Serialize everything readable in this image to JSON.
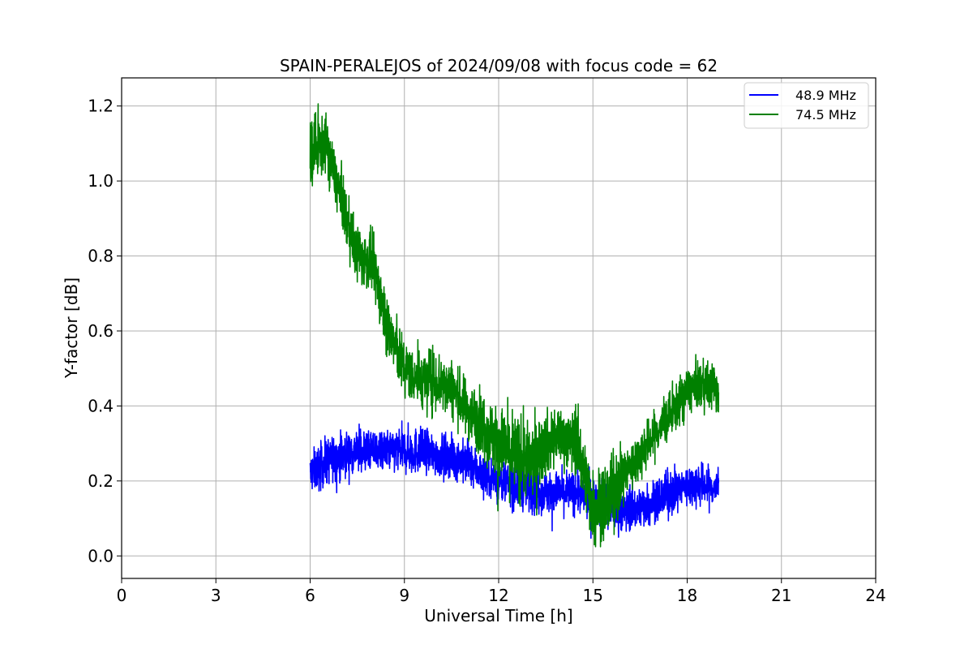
{
  "chart_data": {
    "type": "line",
    "title": "SPAIN-PERALEJOS of 2024/09/08 with focus code = 62",
    "xlabel": "Universal Time [h]",
    "ylabel": "Y-factor [dB]",
    "xlim": [
      0,
      24
    ],
    "ylim": [
      -0.06,
      1.275
    ],
    "xticks": [
      0,
      3,
      6,
      9,
      12,
      15,
      18,
      21,
      24
    ],
    "yticks": [
      0.0,
      0.2,
      0.4,
      0.6,
      0.8,
      1.0,
      1.2
    ],
    "ytick_labels": [
      "0.0",
      "0.2",
      "0.4",
      "0.6",
      "0.8",
      "1.0",
      "1.2"
    ],
    "grid": true,
    "legend_position": "top-right",
    "series": [
      {
        "name": "48.9 MHz",
        "color": "#0000ff",
        "x": [
          6.0,
          6.5,
          7.0,
          7.5,
          8.0,
          8.5,
          9.0,
          9.5,
          10.0,
          10.5,
          11.0,
          11.5,
          12.0,
          12.5,
          13.0,
          13.5,
          14.0,
          14.5,
          15.0,
          15.5,
          16.0,
          16.5,
          17.0,
          17.5,
          18.0,
          18.5,
          19.0
        ],
        "values": [
          0.22,
          0.25,
          0.27,
          0.28,
          0.28,
          0.28,
          0.28,
          0.28,
          0.27,
          0.26,
          0.25,
          0.22,
          0.2,
          0.19,
          0.18,
          0.17,
          0.17,
          0.17,
          0.15,
          0.13,
          0.12,
          0.13,
          0.15,
          0.17,
          0.19,
          0.19,
          0.18
        ],
        "noise": [
          0.045,
          0.05,
          0.05,
          0.045,
          0.045,
          0.045,
          0.05,
          0.05,
          0.045,
          0.045,
          0.045,
          0.045,
          0.045,
          0.05,
          0.05,
          0.045,
          0.045,
          0.045,
          0.05,
          0.05,
          0.045,
          0.045,
          0.045,
          0.045,
          0.045,
          0.045,
          0.04
        ]
      },
      {
        "name": "74.5 MHz",
        "color": "#008000",
        "x": [
          6.0,
          6.5,
          7.0,
          7.5,
          8.0,
          8.5,
          9.0,
          9.5,
          10.0,
          10.5,
          11.0,
          11.5,
          12.0,
          12.5,
          13.0,
          13.5,
          14.0,
          14.5,
          15.0,
          15.5,
          16.0,
          16.5,
          17.0,
          17.5,
          18.0,
          18.5,
          19.0
        ],
        "values": [
          1.08,
          1.1,
          0.95,
          0.8,
          0.78,
          0.6,
          0.5,
          0.47,
          0.47,
          0.45,
          0.39,
          0.35,
          0.3,
          0.27,
          0.25,
          0.3,
          0.32,
          0.3,
          0.13,
          0.15,
          0.22,
          0.27,
          0.33,
          0.38,
          0.44,
          0.46,
          0.44
        ],
        "noise": [
          0.08,
          0.06,
          0.06,
          0.06,
          0.06,
          0.07,
          0.06,
          0.06,
          0.07,
          0.06,
          0.06,
          0.07,
          0.08,
          0.09,
          0.08,
          0.07,
          0.06,
          0.07,
          0.08,
          0.08,
          0.06,
          0.05,
          0.05,
          0.05,
          0.05,
          0.05,
          0.05
        ]
      }
    ]
  }
}
